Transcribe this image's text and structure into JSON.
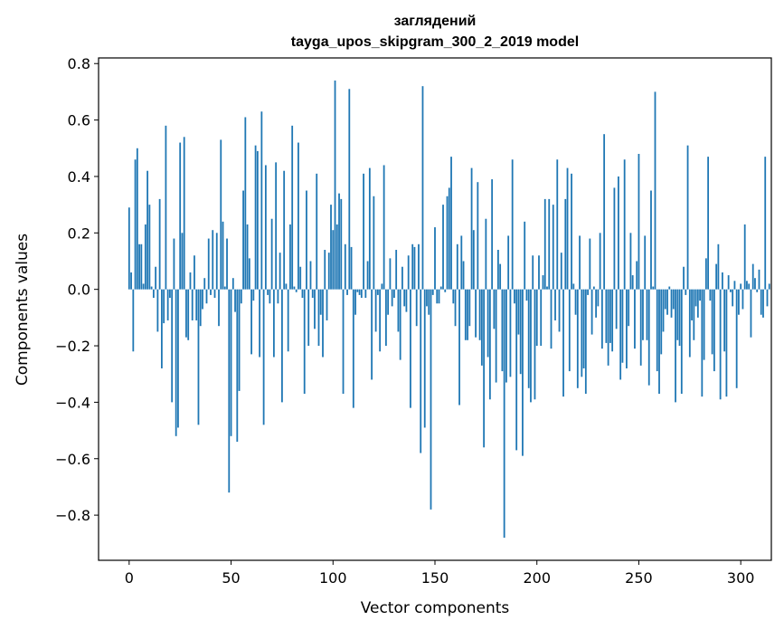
{
  "chart_data": {
    "type": "bar",
    "title_line1": "заглядений",
    "title_line2": "tayga_upos_skipgram_300_2_2019 model",
    "xlabel": "Vector components",
    "ylabel": "Components values",
    "xlim": [
      -15,
      315
    ],
    "ylim": [
      -0.96,
      0.82
    ],
    "x_ticks": [
      0,
      50,
      100,
      150,
      200,
      250,
      300
    ],
    "x_tick_labels": [
      "0",
      "50",
      "100",
      "150",
      "200",
      "250",
      "300"
    ],
    "y_ticks": [
      -0.8,
      -0.6,
      -0.4,
      -0.2,
      0.0,
      0.2,
      0.4,
      0.6,
      0.8
    ],
    "y_tick_labels": [
      "−0.8",
      "−0.6",
      "−0.4",
      "−0.2",
      "0.0",
      "0.2",
      "0.4",
      "0.6",
      "0.8"
    ],
    "bar_color": "#1f77b4",
    "series": [
      {
        "name": "components",
        "values": [
          0.29,
          0.06,
          -0.22,
          0.46,
          0.5,
          0.16,
          0.16,
          0.02,
          0.23,
          0.42,
          0.3,
          0.01,
          -0.03,
          0.08,
          -0.15,
          0.32,
          -0.28,
          -0.12,
          0.58,
          -0.11,
          -0.03,
          -0.4,
          0.18,
          -0.52,
          -0.49,
          0.52,
          0.2,
          0.54,
          -0.17,
          -0.18,
          0.06,
          -0.11,
          0.12,
          -0.11,
          -0.48,
          -0.13,
          -0.07,
          0.04,
          -0.05,
          0.18,
          -0.02,
          0.21,
          -0.03,
          0.2,
          -0.13,
          0.53,
          0.24,
          0.01,
          0.18,
          -0.72,
          -0.52,
          0.04,
          -0.08,
          -0.54,
          -0.36,
          -0.05,
          0.35,
          0.61,
          0.23,
          0.11,
          -0.23,
          -0.04,
          0.51,
          0.49,
          -0.24,
          0.63,
          -0.48,
          0.44,
          -0.02,
          -0.05,
          0.25,
          -0.24,
          0.45,
          -0.05,
          0.13,
          -0.4,
          0.42,
          0.02,
          -0.22,
          0.23,
          0.58,
          0.01,
          -0.01,
          0.52,
          0.08,
          -0.03,
          -0.37,
          0.35,
          -0.2,
          0.1,
          -0.03,
          -0.14,
          0.41,
          -0.2,
          -0.09,
          -0.24,
          0.14,
          -0.11,
          0.13,
          0.3,
          0.21,
          0.74,
          0.23,
          0.34,
          0.32,
          -0.37,
          0.16,
          -0.02,
          0.71,
          0.15,
          -0.42,
          -0.09,
          -0.01,
          -0.02,
          -0.03,
          0.41,
          -0.03,
          0.1,
          0.43,
          -0.32,
          0.33,
          -0.15,
          -0.02,
          -0.22,
          0.02,
          0.44,
          -0.2,
          -0.09,
          0.11,
          -0.06,
          -0.03,
          0.14,
          -0.15,
          -0.25,
          0.08,
          -0.06,
          -0.08,
          0.12,
          -0.42,
          0.16,
          0.15,
          -0.13,
          0.16,
          -0.58,
          0.72,
          -0.49,
          -0.06,
          -0.09,
          -0.78,
          -0.02,
          0.22,
          -0.05,
          -0.05,
          0.01,
          0.3,
          -0.01,
          0.33,
          0.36,
          0.47,
          -0.05,
          -0.13,
          0.16,
          -0.41,
          0.19,
          0.1,
          -0.18,
          -0.18,
          -0.13,
          0.43,
          0.21,
          -0.17,
          0.38,
          -0.18,
          -0.27,
          -0.56,
          0.25,
          -0.24,
          -0.39,
          0.39,
          -0.14,
          -0.33,
          0.14,
          0.09,
          -0.29,
          -0.88,
          -0.33,
          0.19,
          -0.31,
          0.46,
          -0.05,
          -0.57,
          -0.16,
          -0.3,
          -0.59,
          0.24,
          -0.04,
          -0.35,
          -0.4,
          0.12,
          -0.39,
          -0.2,
          0.12,
          -0.2,
          0.05,
          0.32,
          0.01,
          0.32,
          -0.21,
          0.3,
          -0.11,
          0.46,
          -0.15,
          0.13,
          -0.38,
          0.32,
          0.43,
          -0.29,
          0.41,
          0.02,
          -0.09,
          -0.35,
          0.19,
          -0.31,
          -0.28,
          -0.37,
          -0.02,
          0.18,
          -0.16,
          0.01,
          -0.1,
          -0.06,
          0.2,
          -0.21,
          0.55,
          -0.19,
          -0.27,
          -0.19,
          -0.22,
          0.36,
          -0.14,
          0.4,
          -0.32,
          -0.26,
          0.46,
          -0.28,
          -0.13,
          0.2,
          0.05,
          -0.21,
          0.1,
          0.48,
          -0.27,
          -0.18,
          0.19,
          -0.18,
          -0.34,
          0.35,
          0.01,
          0.7,
          -0.29,
          -0.37,
          -0.23,
          -0.15,
          -0.07,
          -0.09,
          0.01,
          -0.1,
          -0.07,
          -0.4,
          -0.18,
          -0.2,
          -0.37,
          0.08,
          -0.02,
          0.51,
          -0.24,
          -0.11,
          -0.18,
          -0.06,
          -0.1,
          -0.04,
          -0.38,
          -0.25,
          0.11,
          0.47,
          -0.04,
          -0.23,
          -0.29,
          0.09,
          0.16,
          -0.39,
          0.06,
          -0.22,
          -0.38,
          0.05,
          -0.01,
          -0.06,
          0.03,
          -0.35,
          -0.09,
          0.02,
          -0.07,
          0.23,
          0.03,
          0.02,
          -0.17,
          0.09,
          0.04,
          -0.01,
          0.07,
          -0.09,
          -0.1,
          0.47,
          -0.06,
          0.02
        ]
      }
    ]
  }
}
